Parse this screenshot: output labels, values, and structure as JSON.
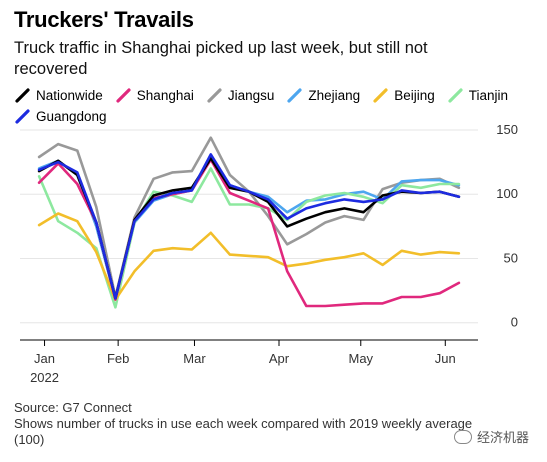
{
  "chart_data": {
    "type": "line",
    "title": "Truckers' Travails",
    "subtitle": "Truck traffic in Shanghai picked up last week, but still not recovered",
    "x": [
      "2022-01-03",
      "2022-01-10",
      "2022-01-17",
      "2022-01-24",
      "2022-01-31",
      "2022-02-07",
      "2022-02-14",
      "2022-02-21",
      "2022-02-28",
      "2022-03-07",
      "2022-03-14",
      "2022-03-21",
      "2022-03-28",
      "2022-04-04",
      "2022-04-11",
      "2022-04-18",
      "2022-04-25",
      "2022-05-02",
      "2022-05-09",
      "2022-05-16",
      "2022-05-23",
      "2022-05-30",
      "2022-06-06"
    ],
    "x_tick_labels": [
      {
        "x": "2022-01-05",
        "label": "Jan"
      },
      {
        "x": "2022-02-01",
        "label": "Feb"
      },
      {
        "x": "2022-03-01",
        "label": "Mar"
      },
      {
        "x": "2022-04-01",
        "label": "Apr"
      },
      {
        "x": "2022-05-01",
        "label": "May"
      },
      {
        "x": "2022-06-01",
        "label": "Jun"
      }
    ],
    "year_label": "2022",
    "yticks": [
      0,
      50,
      100,
      150
    ],
    "ylim": [
      -8,
      150
    ],
    "xlabel": "",
    "ylabel": "",
    "grid": "horizontal",
    "legend_position": "top",
    "series": [
      {
        "name": "Nationwide",
        "color": "#000000",
        "values": [
          118,
          126,
          115,
          78,
          19,
          80,
          99,
          103,
          105,
          128,
          105,
          102,
          94,
          75,
          81,
          86,
          89,
          86,
          99,
          102,
          101,
          102,
          98
        ]
      },
      {
        "name": "Shanghai",
        "color": "#e0287d",
        "values": [
          109,
          124,
          108,
          78,
          18,
          80,
          97,
          100,
          103,
          127,
          101,
          95,
          89,
          40,
          13,
          13,
          14,
          15,
          15,
          20,
          20,
          23,
          31
        ]
      },
      {
        "name": "Jiangsu",
        "color": "#999999",
        "values": [
          129,
          139,
          134,
          90,
          20,
          82,
          112,
          117,
          118,
          144,
          115,
          102,
          83,
          61,
          69,
          78,
          83,
          80,
          104,
          109,
          111,
          112,
          105
        ]
      },
      {
        "name": "Zhejiang",
        "color": "#4da6ef",
        "values": [
          120,
          126,
          115,
          75,
          18,
          78,
          95,
          100,
          103,
          129,
          107,
          102,
          98,
          86,
          95,
          96,
          100,
          102,
          96,
          110,
          111,
          111,
          107
        ]
      },
      {
        "name": "Beijing",
        "color": "#f2be2a",
        "values": [
          76,
          85,
          79,
          55,
          18,
          40,
          56,
          58,
          57,
          70,
          53,
          52,
          51,
          44,
          46,
          49,
          51,
          54,
          45,
          56,
          53,
          55,
          54
        ]
      },
      {
        "name": "Tianjin",
        "color": "#8de89f",
        "values": [
          114,
          79,
          70,
          58,
          12,
          78,
          102,
          99,
          94,
          120,
          92,
          92,
          89,
          80,
          94,
          99,
          101,
          98,
          93,
          107,
          105,
          108,
          108
        ]
      },
      {
        "name": "Guangdong",
        "color": "#1d2be0",
        "values": [
          119,
          125,
          117,
          78,
          19,
          79,
          96,
          101,
          103,
          131,
          107,
          102,
          96,
          81,
          89,
          93,
          96,
          94,
          96,
          103,
          101,
          102,
          98
        ]
      }
    ]
  },
  "footnote": {
    "source": "Source: G7 Connect",
    "note": "Shows number of trucks in use each week compared with 2019 weekly average (100)"
  },
  "watermark": {
    "text": "经济机器"
  }
}
